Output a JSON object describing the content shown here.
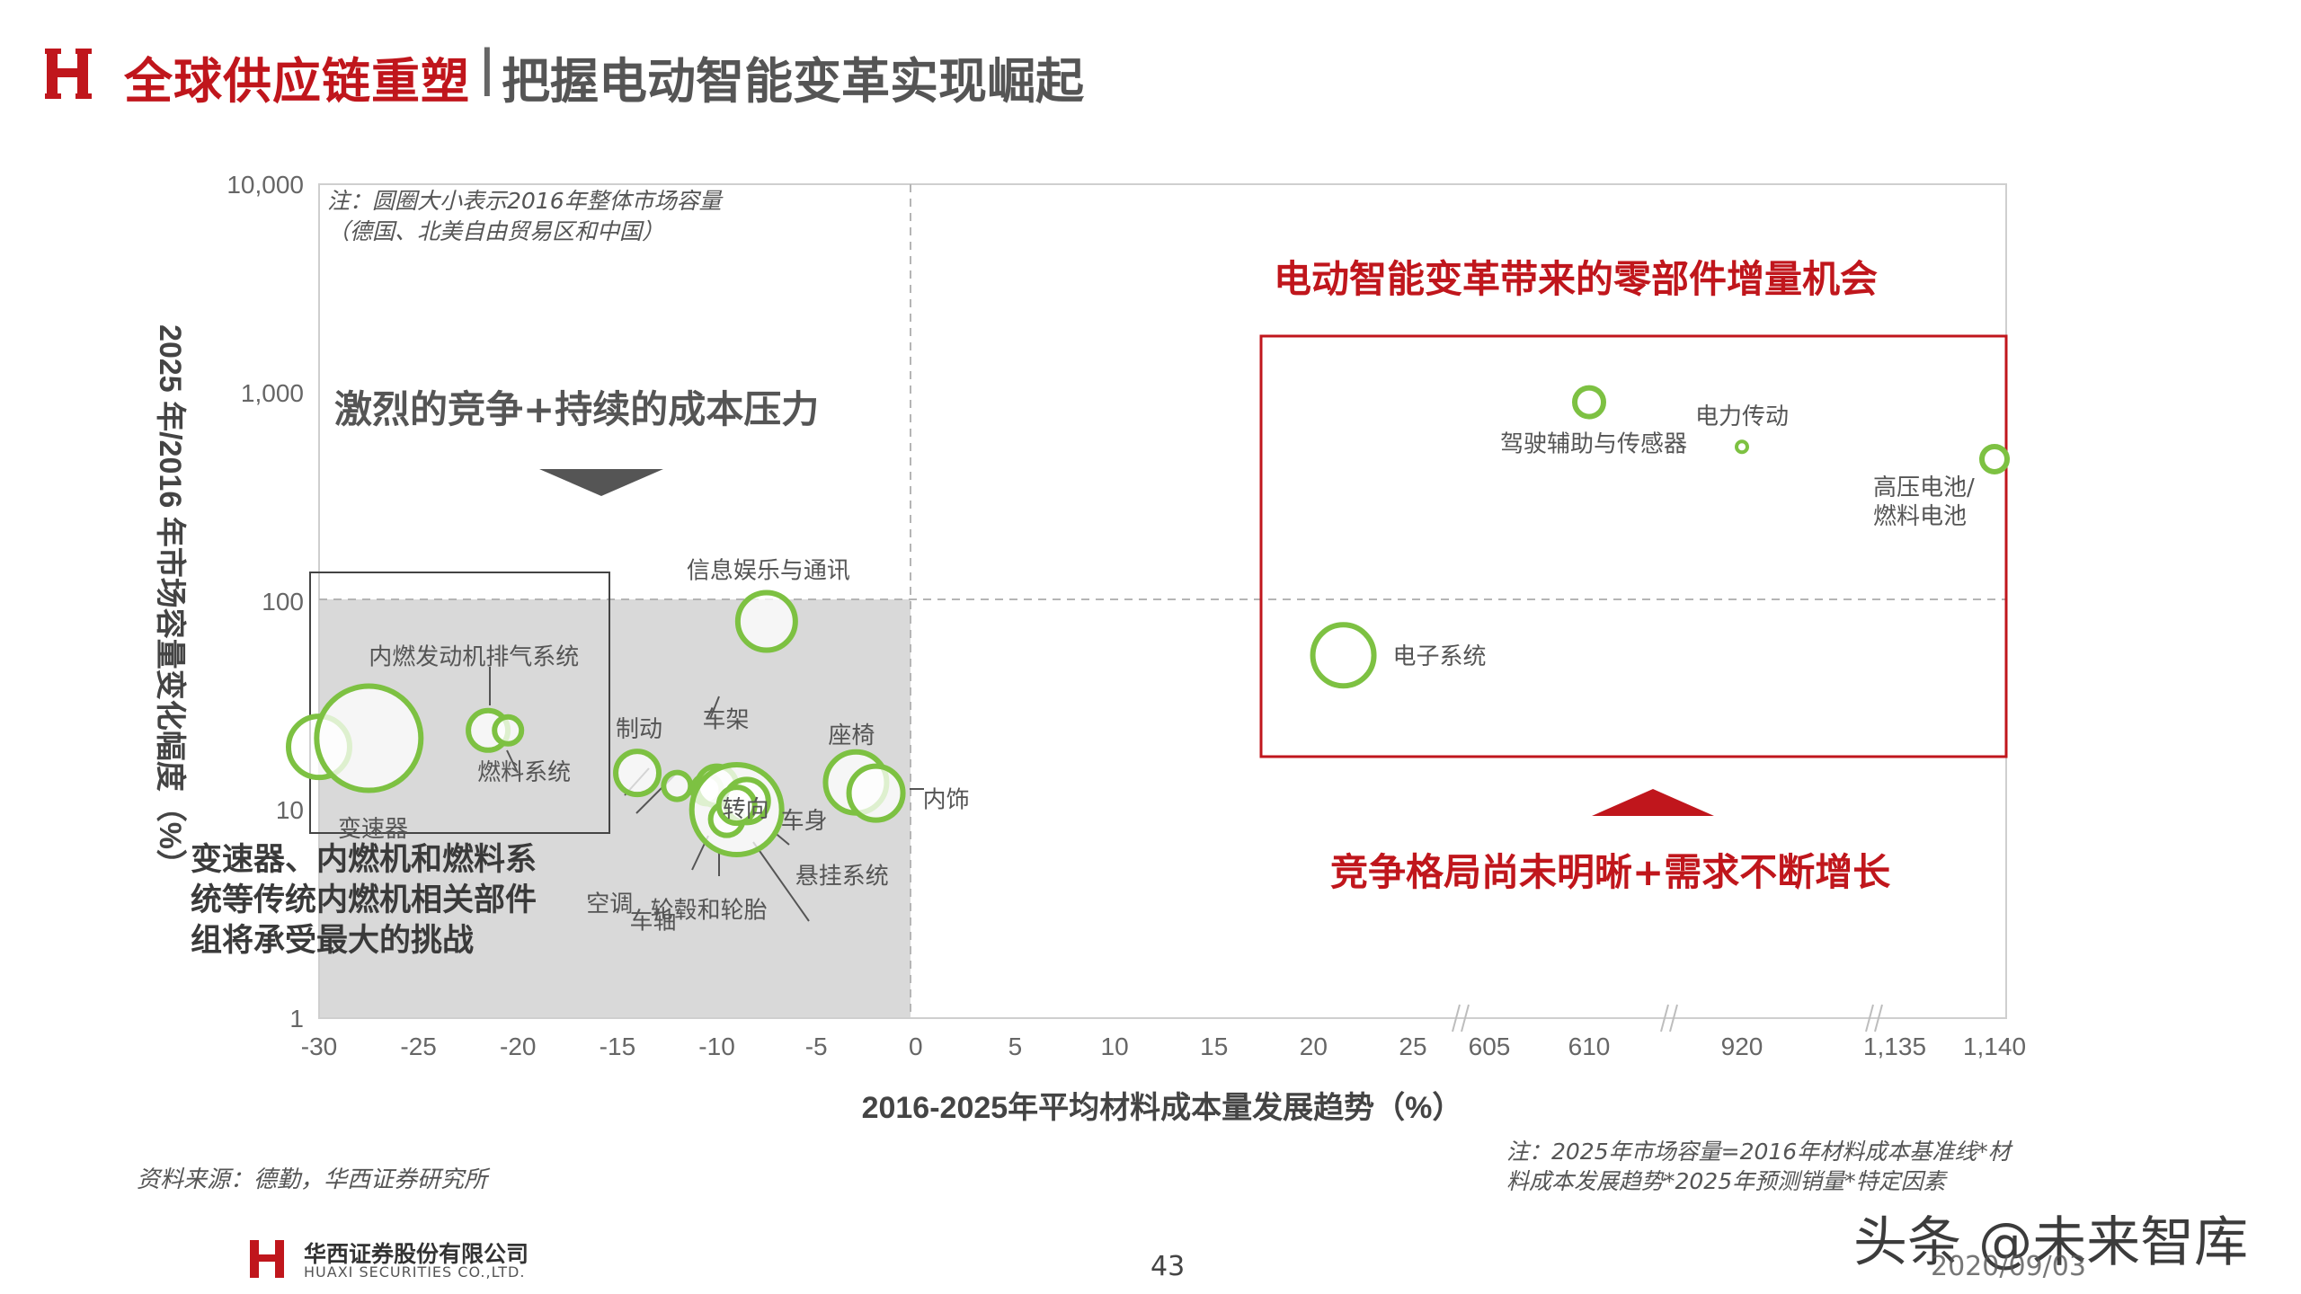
{
  "header": {
    "title_red": "全球供应链重塑",
    "separator": "|",
    "title_grey": "把握电动智能变革实现崛起"
  },
  "chart_data": {
    "type": "scatter",
    "bubble": true,
    "title": "",
    "xlabel": "2016-2025年平均材料成本量发展趋势（%）",
    "ylabel": "2025 年/2016 年市场容量变化幅度（%）",
    "y_scale": "log",
    "ylim": [
      1,
      10000
    ],
    "y_ticks": [
      "1",
      "10",
      "100",
      "1,000",
      "10,000"
    ],
    "x_ticks": [
      "-30",
      "-25",
      "-20",
      "-15",
      "-10",
      "-5",
      "0",
      "5",
      "10",
      "15",
      "20",
      "25",
      "605",
      "610",
      "920",
      "1,135",
      "1,140"
    ],
    "x_segments": [
      {
        "from": -30,
        "to": 25
      },
      {
        "from": 605,
        "to": 610
      },
      {
        "from": 920,
        "to": 920
      },
      {
        "from": 1135,
        "to": 1140
      }
    ],
    "bubble_color": "#7dc142",
    "points": [
      {
        "label": "变速器",
        "x": -30,
        "y": 20
      },
      {
        "label": "内燃发动机排气系统",
        "x": -27.5,
        "y": 22
      },
      {
        "label": "燃料系统",
        "x": -21.5,
        "y": 24
      },
      {
        "label": "",
        "x": -20.5,
        "y": 24
      },
      {
        "label": "制动",
        "x": -14,
        "y": 15
      },
      {
        "label": "空调",
        "x": -12,
        "y": 13
      },
      {
        "label": "车轴",
        "x": -10.5,
        "y": 12.5
      },
      {
        "label": "车架",
        "x": -10,
        "y": 13
      },
      {
        "label": "转向",
        "x": -9,
        "y": 10
      },
      {
        "label": "轮毂和轮胎",
        "x": -9.5,
        "y": 9
      },
      {
        "label": "悬挂系统",
        "x": -8.5,
        "y": 11
      },
      {
        "label": "车身",
        "x": -9,
        "y": 10.5
      },
      {
        "label": "信息娱乐与通讯",
        "x": -7.5,
        "y": 80
      },
      {
        "label": "座椅",
        "x": -3,
        "y": 13.5
      },
      {
        "label": "内饰",
        "x": -2,
        "y": 12
      },
      {
        "label": "电子系统",
        "x": 21.5,
        "y": 55
      },
      {
        "label": "驾驶辅助与传感器",
        "x": 610,
        "y": 900
      },
      {
        "label": "电力传动",
        "x": 920,
        "y": 550
      },
      {
        "label": "高压电池/燃料电池",
        "x": 1140,
        "y": 480
      }
    ],
    "annotations": {
      "note": [
        "注：圆圈大小表示2016年整体市场容量",
        "（德国、北美自由贸易区和中国）"
      ],
      "left_heading": "激烈的竞争+持续的成本压力",
      "right_heading": "电动智能变革带来的零部件增量机会",
      "right_bottom": "竞争格局尚未明晰+需求不断增长"
    }
  },
  "notes": {
    "left_note": [
      "变速器、内燃机和燃料系",
      "统等传统内燃机相关部件",
      "组将承受最大的挑战"
    ],
    "source": "资料来源：德勤，华西证券研究所",
    "footnote": [
      "注：2025年市场容量=2016年材料成本基准线*材",
      "料成本发展趋势*2025年预测销量*特定因素"
    ]
  },
  "footer": {
    "company_cn": "华西证券股份有限公司",
    "company_en": "HUAXI SECURITIES CO.,LTD.",
    "page_number": "43",
    "watermark": "头条 @未来智库",
    "date": "2020/09/03"
  },
  "colors": {
    "brand_red": "#c0161c",
    "bubble_green": "#7dc142",
    "shaded_region": "#d9d9d9"
  }
}
